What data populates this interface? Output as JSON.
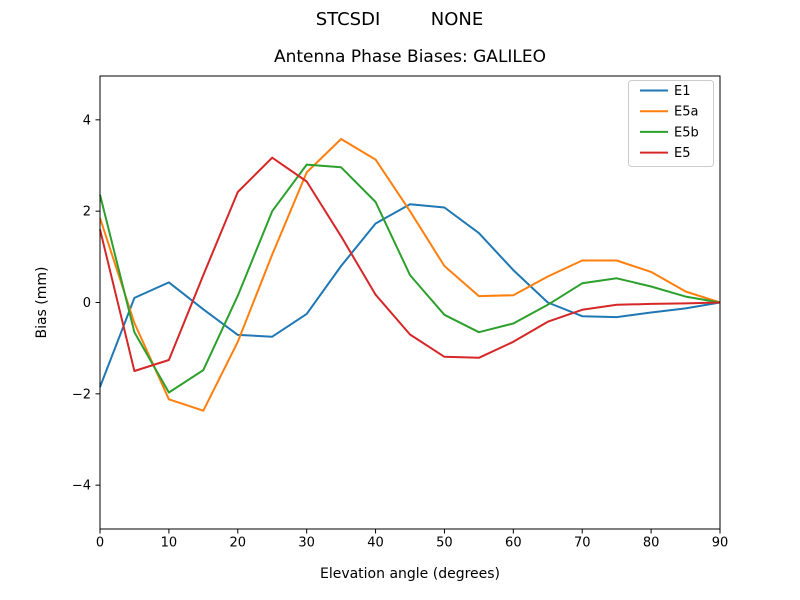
{
  "chart_data": {
    "type": "line",
    "suptitle": {
      "left": "STCSDI",
      "right": "NONE"
    },
    "title": "Antenna Phase Biases: GALILEO",
    "xlabel": "Elevation angle (degrees)",
    "ylabel": "Bias (mm)",
    "xlim": [
      0,
      90
    ],
    "ylim": [
      -4.96,
      4.96
    ],
    "xticks": [
      0,
      10,
      20,
      30,
      40,
      50,
      60,
      70,
      80,
      90
    ],
    "yticks": [
      -4,
      -2,
      0,
      2,
      4
    ],
    "grid": false,
    "legend": {
      "position": "upper right",
      "entries": [
        "E1",
        "E5a",
        "E5b",
        "E5"
      ]
    },
    "x": [
      0,
      5,
      10,
      15,
      20,
      25,
      30,
      35,
      40,
      45,
      50,
      55,
      60,
      65,
      70,
      75,
      80,
      85,
      90
    ],
    "series": [
      {
        "name": "E1",
        "color": "#1f77b4",
        "values": [
          -1.85,
          0.1,
          0.44,
          -0.15,
          -0.71,
          -0.75,
          -0.25,
          0.8,
          1.73,
          2.15,
          2.08,
          1.52,
          0.71,
          0.0,
          -0.3,
          -0.32,
          -0.22,
          -0.13,
          0.0
        ]
      },
      {
        "name": "E5a",
        "color": "#ff7f0e",
        "values": [
          1.85,
          -0.45,
          -2.12,
          -2.37,
          -0.86,
          1.05,
          2.85,
          3.58,
          3.13,
          2.0,
          0.8,
          0.14,
          0.16,
          0.57,
          0.92,
          0.92,
          0.67,
          0.24,
          0.0
        ]
      },
      {
        "name": "E5b",
        "color": "#2ca02c",
        "values": [
          2.36,
          -0.65,
          -1.97,
          -1.48,
          0.15,
          2.0,
          3.02,
          2.96,
          2.2,
          0.6,
          -0.27,
          -0.65,
          -0.46,
          -0.05,
          0.42,
          0.53,
          0.35,
          0.13,
          0.0
        ]
      },
      {
        "name": "E5",
        "color": "#d62728",
        "values": [
          1.6,
          -1.5,
          -1.26,
          0.6,
          2.42,
          3.17,
          2.65,
          1.45,
          0.17,
          -0.7,
          -1.19,
          -1.21,
          -0.86,
          -0.42,
          -0.16,
          -0.05,
          -0.03,
          -0.02,
          0.0
        ]
      }
    ],
    "frame_color": "#000000",
    "legend_edge_color": "#cccccc"
  }
}
